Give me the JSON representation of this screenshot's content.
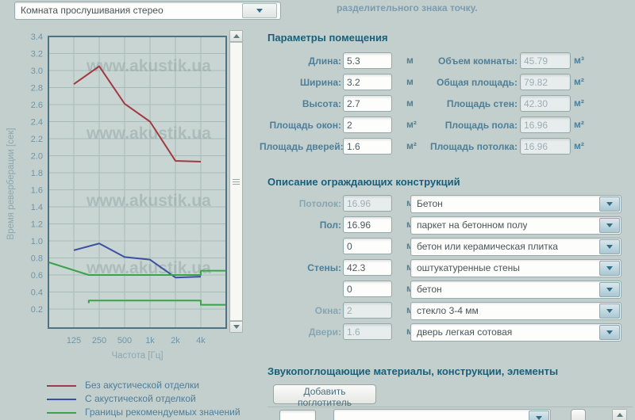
{
  "header": {
    "room_select_value": "Комната прослушивания стерео",
    "note": "разделительного знака точку."
  },
  "chart_data": {
    "type": "line",
    "title": "",
    "xlabel": "Частота [Гц]",
    "ylabel": "Время реверберации [сек]",
    "watermark": "www.akustik.ua",
    "x_scale": "log2",
    "xlim_hz": [
      62.5,
      8000
    ],
    "ylim": [
      0.2,
      3.4
    ],
    "ystep": 0.2,
    "x_ticks": [
      {
        "hz": 125,
        "label": "125"
      },
      {
        "hz": 250,
        "label": "250"
      },
      {
        "hz": 500,
        "label": "500"
      },
      {
        "hz": 1000,
        "label": "1k"
      },
      {
        "hz": 2000,
        "label": "2k"
      },
      {
        "hz": 4000,
        "label": "4k"
      }
    ],
    "series": [
      {
        "name": "Без акустической отделки",
        "color": "#a23b41",
        "x_hz": [
          125,
          250,
          500,
          1000,
          2000,
          4000
        ],
        "values": [
          2.84,
          3.05,
          2.61,
          2.4,
          1.94,
          1.93
        ]
      },
      {
        "name": "С акустической отделкой",
        "color": "#3c50a0",
        "x_hz": [
          125,
          250,
          500,
          1000,
          2000,
          4000
        ],
        "values": [
          0.89,
          0.97,
          0.81,
          0.78,
          0.57,
          0.58
        ]
      },
      {
        "name": "Границы рекомендуемых значений (верхняя)",
        "color": "#3aa24a",
        "x_hz": [
          62.5,
          188,
          4000,
          4000,
          8000
        ],
        "values": [
          0.75,
          0.6,
          0.6,
          0.65,
          0.65
        ]
      },
      {
        "name": "Границы рекомендуемых значений (нижняя)",
        "color": "#3aa24a",
        "x_hz": [
          188,
          188,
          4000,
          4000,
          8000
        ],
        "values": [
          0.27,
          0.3,
          0.3,
          0.25,
          0.25
        ]
      }
    ]
  },
  "legend": [
    {
      "label": "Без акустической отделки",
      "color": "#a23b41"
    },
    {
      "label": "С акустической отделкой",
      "color": "#3c50a0"
    },
    {
      "label": "Границы рекомендуемых значений",
      "color": "#3aa24a"
    }
  ],
  "room_params": {
    "title": "Параметры помещения",
    "left_rows": [
      {
        "label": "Длина:",
        "value": "5.3",
        "unit": "м"
      },
      {
        "label": "Ширина:",
        "value": "3.2",
        "unit": "м"
      },
      {
        "label": "Высота:",
        "value": "2.7",
        "unit": "м"
      },
      {
        "label": "Площадь окон:",
        "value": "2",
        "unit": "м²"
      },
      {
        "label": "Площадь дверей:",
        "value": "1.6",
        "unit": "м²"
      }
    ],
    "right_rows": [
      {
        "label": "Объем комнаты:",
        "value": "45.79",
        "unit": "м³"
      },
      {
        "label": "Общая площадь:",
        "value": "79.82",
        "unit": "м²"
      },
      {
        "label": "Площадь стен:",
        "value": "42.30",
        "unit": "м²"
      },
      {
        "label": "Площадь пола:",
        "value": "16.96",
        "unit": "м²"
      },
      {
        "label": "Площадь потолка:",
        "value": "16.96",
        "unit": "м²"
      }
    ]
  },
  "constructions": {
    "title": "Описание ограждающих конструкций",
    "rows": [
      {
        "label": "Потолок:",
        "value": "16.96",
        "unit": "м²",
        "material": "Бетон",
        "value_disabled": true
      },
      {
        "label": "Пол:",
        "value": "16.96",
        "unit": "м²",
        "material": "паркет на бетонном полу",
        "value_disabled": false
      },
      {
        "label": "",
        "value": "0",
        "unit": "м²",
        "material": "бетон или керамическая плитка",
        "value_disabled": false
      },
      {
        "label": "Стены:",
        "value": "42.3",
        "unit": "м²",
        "material": "оштукатуренные стены",
        "value_disabled": false
      },
      {
        "label": "",
        "value": "0",
        "unit": "м²",
        "material": "бетон",
        "value_disabled": false
      },
      {
        "label": "Окна:",
        "value": "2",
        "unit": "м²",
        "material": "стекло 3-4 мм",
        "value_disabled": true
      },
      {
        "label": "Двери:",
        "value": "1.6",
        "unit": "м²",
        "material": "дверь легкая сотовая",
        "value_disabled": true
      }
    ]
  },
  "absorbers": {
    "title": "Звукопоглощающие материалы, конструкции, элементы",
    "add_button": "Добавить поглотитель"
  }
}
